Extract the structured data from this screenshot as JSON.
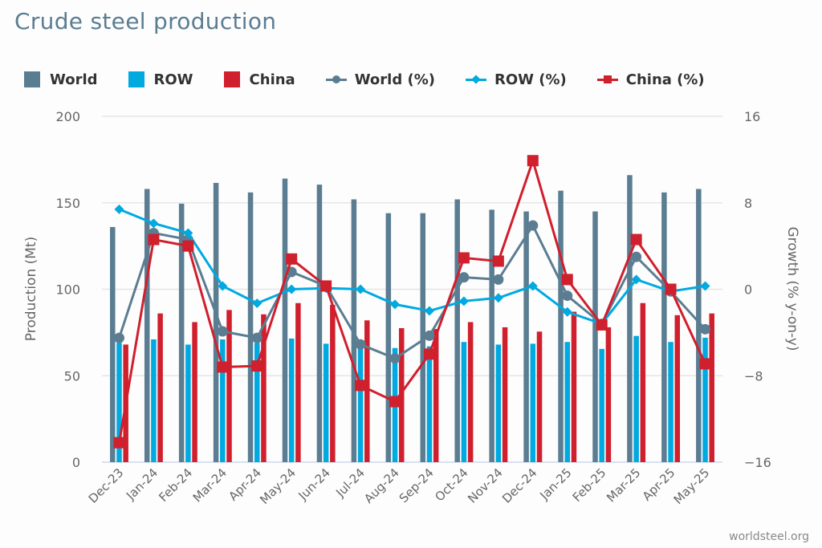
{
  "title": "Crude steel production",
  "credit": "worldsteel.org",
  "colors": {
    "world": "#5b7d92",
    "row": "#00a9e0",
    "china": "#d01f2d",
    "grid": "#e6e6e6",
    "axis_line": "#ccd6eb",
    "tick_text": "#666666"
  },
  "legend": [
    {
      "label": "World",
      "kind": "bar",
      "color_key": "world"
    },
    {
      "label": "ROW",
      "kind": "bar",
      "color_key": "row"
    },
    {
      "label": "China",
      "kind": "bar",
      "color_key": "china"
    },
    {
      "label": "World (%)",
      "kind": "line-circle",
      "color_key": "world"
    },
    {
      "label": "ROW (%)",
      "kind": "line-diamond",
      "color_key": "row"
    },
    {
      "label": "China (%)",
      "kind": "line-square",
      "color_key": "china"
    }
  ],
  "chart_data": {
    "type": "bar",
    "title": "Crude steel production",
    "xlabel": "",
    "ylabel": "Production (Mt)",
    "y2label": "Growth (% y-on-y)",
    "ylim": [
      0,
      200
    ],
    "y2lim": [
      -16,
      16
    ],
    "yticks": [
      0,
      50,
      100,
      150,
      200
    ],
    "y2ticks": [
      -16,
      -8,
      0,
      8,
      16
    ],
    "grid": true,
    "legend_position": "top-left",
    "categories": [
      "Dec-23",
      "Jan-24",
      "Feb-24",
      "Mar-24",
      "Apr-24",
      "May-24",
      "Jun-24",
      "Jul-24",
      "Aug-24",
      "Sep-24",
      "Oct-24",
      "Nov-24",
      "Dec-24",
      "Jan-25",
      "Feb-25",
      "Mar-25",
      "Apr-25",
      "May-25"
    ],
    "series": [
      {
        "name": "World",
        "type": "bar",
        "axis": "left",
        "values": [
          136,
          158,
          149.5,
          161.5,
          156,
          164,
          160.5,
          152,
          144,
          144,
          152,
          146,
          145,
          157,
          145,
          166,
          156,
          158
        ]
      },
      {
        "name": "ROW",
        "type": "bar",
        "axis": "left",
        "values": [
          69,
          71,
          68,
          71,
          69,
          71.5,
          68.5,
          68,
          66,
          67,
          69.5,
          68,
          68.5,
          69.5,
          65.5,
          73,
          69.5,
          72
        ]
      },
      {
        "name": "China",
        "type": "bar",
        "axis": "left",
        "values": [
          68,
          86,
          81,
          88,
          85.5,
          92,
          91,
          82,
          77.5,
          77,
          81,
          78,
          75.5,
          87,
          78,
          92,
          85,
          86
        ]
      },
      {
        "name": "World (%)",
        "type": "line",
        "marker": "circle",
        "axis": "right",
        "values": [
          -4.5,
          5.2,
          4.6,
          -3.9,
          -4.5,
          1.6,
          0.3,
          -5.1,
          -6.4,
          -4.3,
          1.1,
          0.9,
          5.9,
          -0.6,
          -3.2,
          3.0,
          -0.2,
          -3.7
        ]
      },
      {
        "name": "ROW (%)",
        "type": "line",
        "marker": "diamond",
        "axis": "right",
        "values": [
          7.4,
          6.1,
          5.2,
          0.3,
          -1.3,
          0.0,
          0.1,
          0.0,
          -1.4,
          -2.0,
          -1.1,
          -0.8,
          0.3,
          -2.1,
          -3.2,
          0.9,
          -0.2,
          0.3
        ]
      },
      {
        "name": "China (%)",
        "type": "line",
        "marker": "square",
        "axis": "right",
        "values": [
          -14.2,
          4.6,
          4.0,
          -7.2,
          -7.1,
          2.8,
          0.3,
          -8.9,
          -10.4,
          -6.0,
          2.9,
          2.6,
          11.9,
          0.9,
          -3.3,
          4.6,
          0.0,
          -6.9
        ]
      }
    ]
  }
}
